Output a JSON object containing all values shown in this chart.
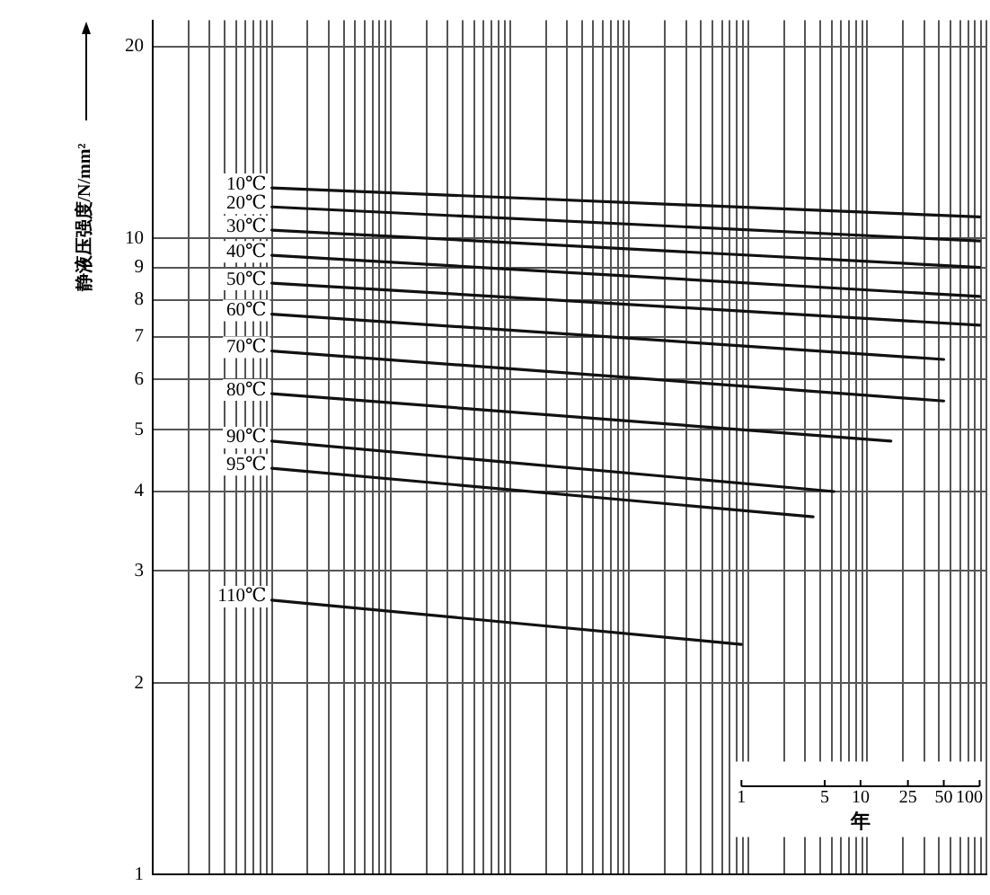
{
  "chart_data": {
    "type": "line",
    "ylabel": "静液压强度/N/mm²",
    "xlabel": "年",
    "log": "xy",
    "grid": true,
    "legend": false,
    "marker": "none",
    "line_style": "solid",
    "xlim": [
      1.14e-05,
      114
    ],
    "xticks": [
      {
        "value": 1.14e-05,
        "label": null
      },
      {
        "value": 2.28e-05,
        "label": null
      },
      {
        "value": 3.42e-05,
        "label": null
      },
      {
        "value": 4.57e-05,
        "label": null
      },
      {
        "value": 5.71e-05,
        "label": null
      },
      {
        "value": 6.85e-05,
        "label": null
      },
      {
        "value": 7.99e-05,
        "label": null
      },
      {
        "value": 9.13e-05,
        "label": null
      },
      {
        "value": 0.000103,
        "label": null
      },
      {
        "value": 0.000114,
        "label": null
      },
      {
        "value": 0.000228,
        "label": null
      },
      {
        "value": 0.000342,
        "label": null
      },
      {
        "value": 0.000457,
        "label": null
      },
      {
        "value": 0.000571,
        "label": null
      },
      {
        "value": 0.000685,
        "label": null
      },
      {
        "value": 0.000799,
        "label": null
      },
      {
        "value": 0.000913,
        "label": null
      },
      {
        "value": 0.00103,
        "label": null
      },
      {
        "value": 0.00114,
        "label": null
      },
      {
        "value": 0.00228,
        "label": null
      },
      {
        "value": 0.00342,
        "label": null
      },
      {
        "value": 0.00457,
        "label": null
      },
      {
        "value": 0.00571,
        "label": null
      },
      {
        "value": 0.00685,
        "label": null
      },
      {
        "value": 0.00799,
        "label": null
      },
      {
        "value": 0.00913,
        "label": null
      },
      {
        "value": 0.0103,
        "label": null
      },
      {
        "value": 0.0114,
        "label": null
      },
      {
        "value": 0.0228,
        "label": null
      },
      {
        "value": 0.0342,
        "label": null
      },
      {
        "value": 0.0457,
        "label": null
      },
      {
        "value": 0.0571,
        "label": null
      },
      {
        "value": 0.0685,
        "label": null
      },
      {
        "value": 0.0799,
        "label": null
      },
      {
        "value": 0.0913,
        "label": null
      },
      {
        "value": 0.103,
        "label": null
      },
      {
        "value": 0.114,
        "label": null
      },
      {
        "value": 0.228,
        "label": null
      },
      {
        "value": 0.342,
        "label": null
      },
      {
        "value": 0.457,
        "label": null
      },
      {
        "value": 0.571,
        "label": null
      },
      {
        "value": 0.685,
        "label": null
      },
      {
        "value": 0.799,
        "label": null
      },
      {
        "value": 0.913,
        "label": null
      },
      1,
      {
        "value": 1.03,
        "label": null
      },
      {
        "value": 1.14,
        "label": null
      },
      {
        "value": 2.28,
        "label": null
      },
      {
        "value": 3.42,
        "label": null
      },
      {
        "value": 4.57,
        "label": null
      },
      5,
      {
        "value": 5.71,
        "label": null
      },
      {
        "value": 6.85,
        "label": null
      },
      {
        "value": 7.99,
        "label": null
      },
      {
        "value": 9.13,
        "label": null
      },
      10,
      {
        "value": 10.3,
        "label": null
      },
      {
        "value": 11.4,
        "label": null
      },
      {
        "value": 22.8,
        "label": null
      },
      25,
      {
        "value": 34.2,
        "label": null
      },
      {
        "value": 45.7,
        "label": null
      },
      50,
      {
        "value": 57.1,
        "label": null
      },
      {
        "value": 68.5,
        "label": null
      },
      {
        "value": 79.9,
        "label": null
      },
      {
        "value": 91.3,
        "label": null
      },
      100,
      {
        "value": 103,
        "label": null
      },
      {
        "value": 114,
        "label": null
      }
    ],
    "ylim": [
      1,
      22
    ],
    "yticks": [
      1,
      2,
      3,
      4,
      5,
      6,
      7,
      8,
      9,
      10,
      20
    ],
    "series": [
      {
        "name": "10℃",
        "color": "#111111",
        "x": [
          0.000114,
          100
        ],
        "values": [
          12.0,
          10.8
        ]
      },
      {
        "name": "20℃",
        "color": "#111111",
        "x": [
          0.000114,
          100
        ],
        "values": [
          11.2,
          9.9
        ]
      },
      {
        "name": "30℃",
        "color": "#111111",
        "x": [
          0.000114,
          100
        ],
        "values": [
          10.3,
          9.0
        ]
      },
      {
        "name": "40℃",
        "color": "#111111",
        "x": [
          0.000114,
          100
        ],
        "values": [
          9.4,
          8.1
        ]
      },
      {
        "name": "50℃",
        "color": "#111111",
        "x": [
          0.000114,
          100
        ],
        "values": [
          8.5,
          7.3
        ]
      },
      {
        "name": "60℃",
        "color": "#111111",
        "x": [
          0.000114,
          50
        ],
        "values": [
          7.6,
          6.45
        ]
      },
      {
        "name": "70℃",
        "color": "#111111",
        "x": [
          0.000114,
          50
        ],
        "values": [
          6.65,
          5.55
        ]
      },
      {
        "name": "80℃",
        "color": "#111111",
        "x": [
          0.000114,
          18
        ],
        "values": [
          5.7,
          4.8
        ]
      },
      {
        "name": "90℃",
        "color": "#111111",
        "x": [
          0.000114,
          6
        ],
        "values": [
          4.8,
          4.0
        ]
      },
      {
        "name": "95℃",
        "color": "#111111",
        "x": [
          0.000114,
          4
        ],
        "values": [
          4.35,
          3.65
        ]
      },
      {
        "name": "110℃",
        "color": "#111111",
        "x": [
          0.000114,
          1
        ],
        "values": [
          2.7,
          2.3
        ]
      }
    ]
  }
}
